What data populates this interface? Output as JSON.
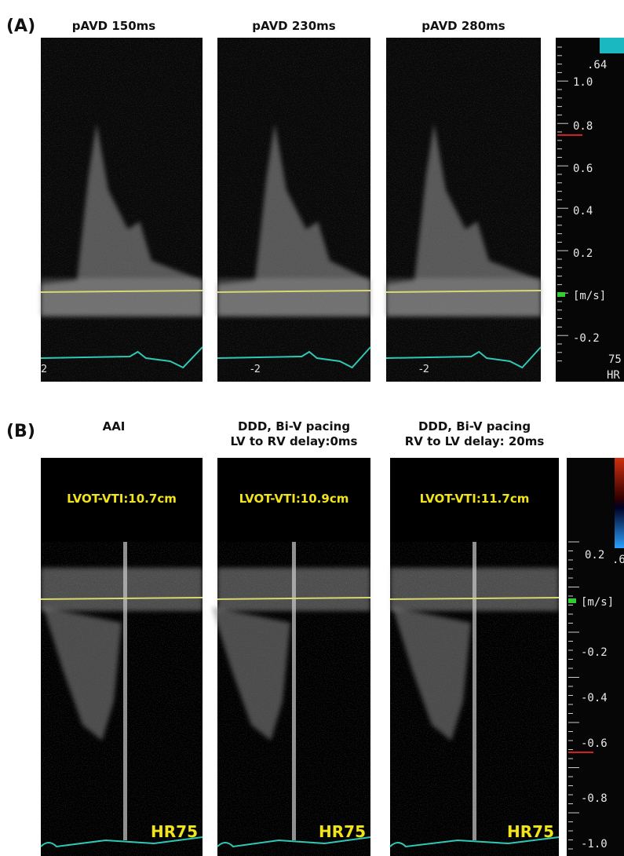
{
  "panel_a": {
    "label": "(A)",
    "titles": [
      "pAVD 150ms",
      "pAVD  230ms",
      "pAVD  280ms"
    ],
    "baseline_marks": [
      "2",
      "-2",
      "-2"
    ],
    "scale": {
      "ticks": [
        ".64",
        "1.0",
        "0.8",
        "0.6",
        "0.4",
        "0.2",
        "[m/s]",
        "-0.2"
      ],
      "hr_value": "75",
      "hr_label": "HR"
    }
  },
  "panel_b": {
    "label": "(B)",
    "titles": [
      [
        "AAI"
      ],
      [
        "DDD, Bi-V pacing",
        "LV to RV delay:0ms"
      ],
      [
        "DDD,  Bi-V pacing",
        "RV to LV delay: 20ms"
      ]
    ],
    "vti": [
      "LVOT-VTI:10.7cm",
      "LVOT-VTI:10.9cm",
      "LVOT-VTI:11.7cm"
    ],
    "heart_rate": [
      "HR75",
      "HR75",
      "HR75"
    ],
    "scale": {
      "ticks": [
        "0.2",
        ".6",
        "[m/s]",
        "-0.2",
        "-0.4",
        "-0.6",
        "-0.8",
        "-1.0"
      ]
    }
  }
}
